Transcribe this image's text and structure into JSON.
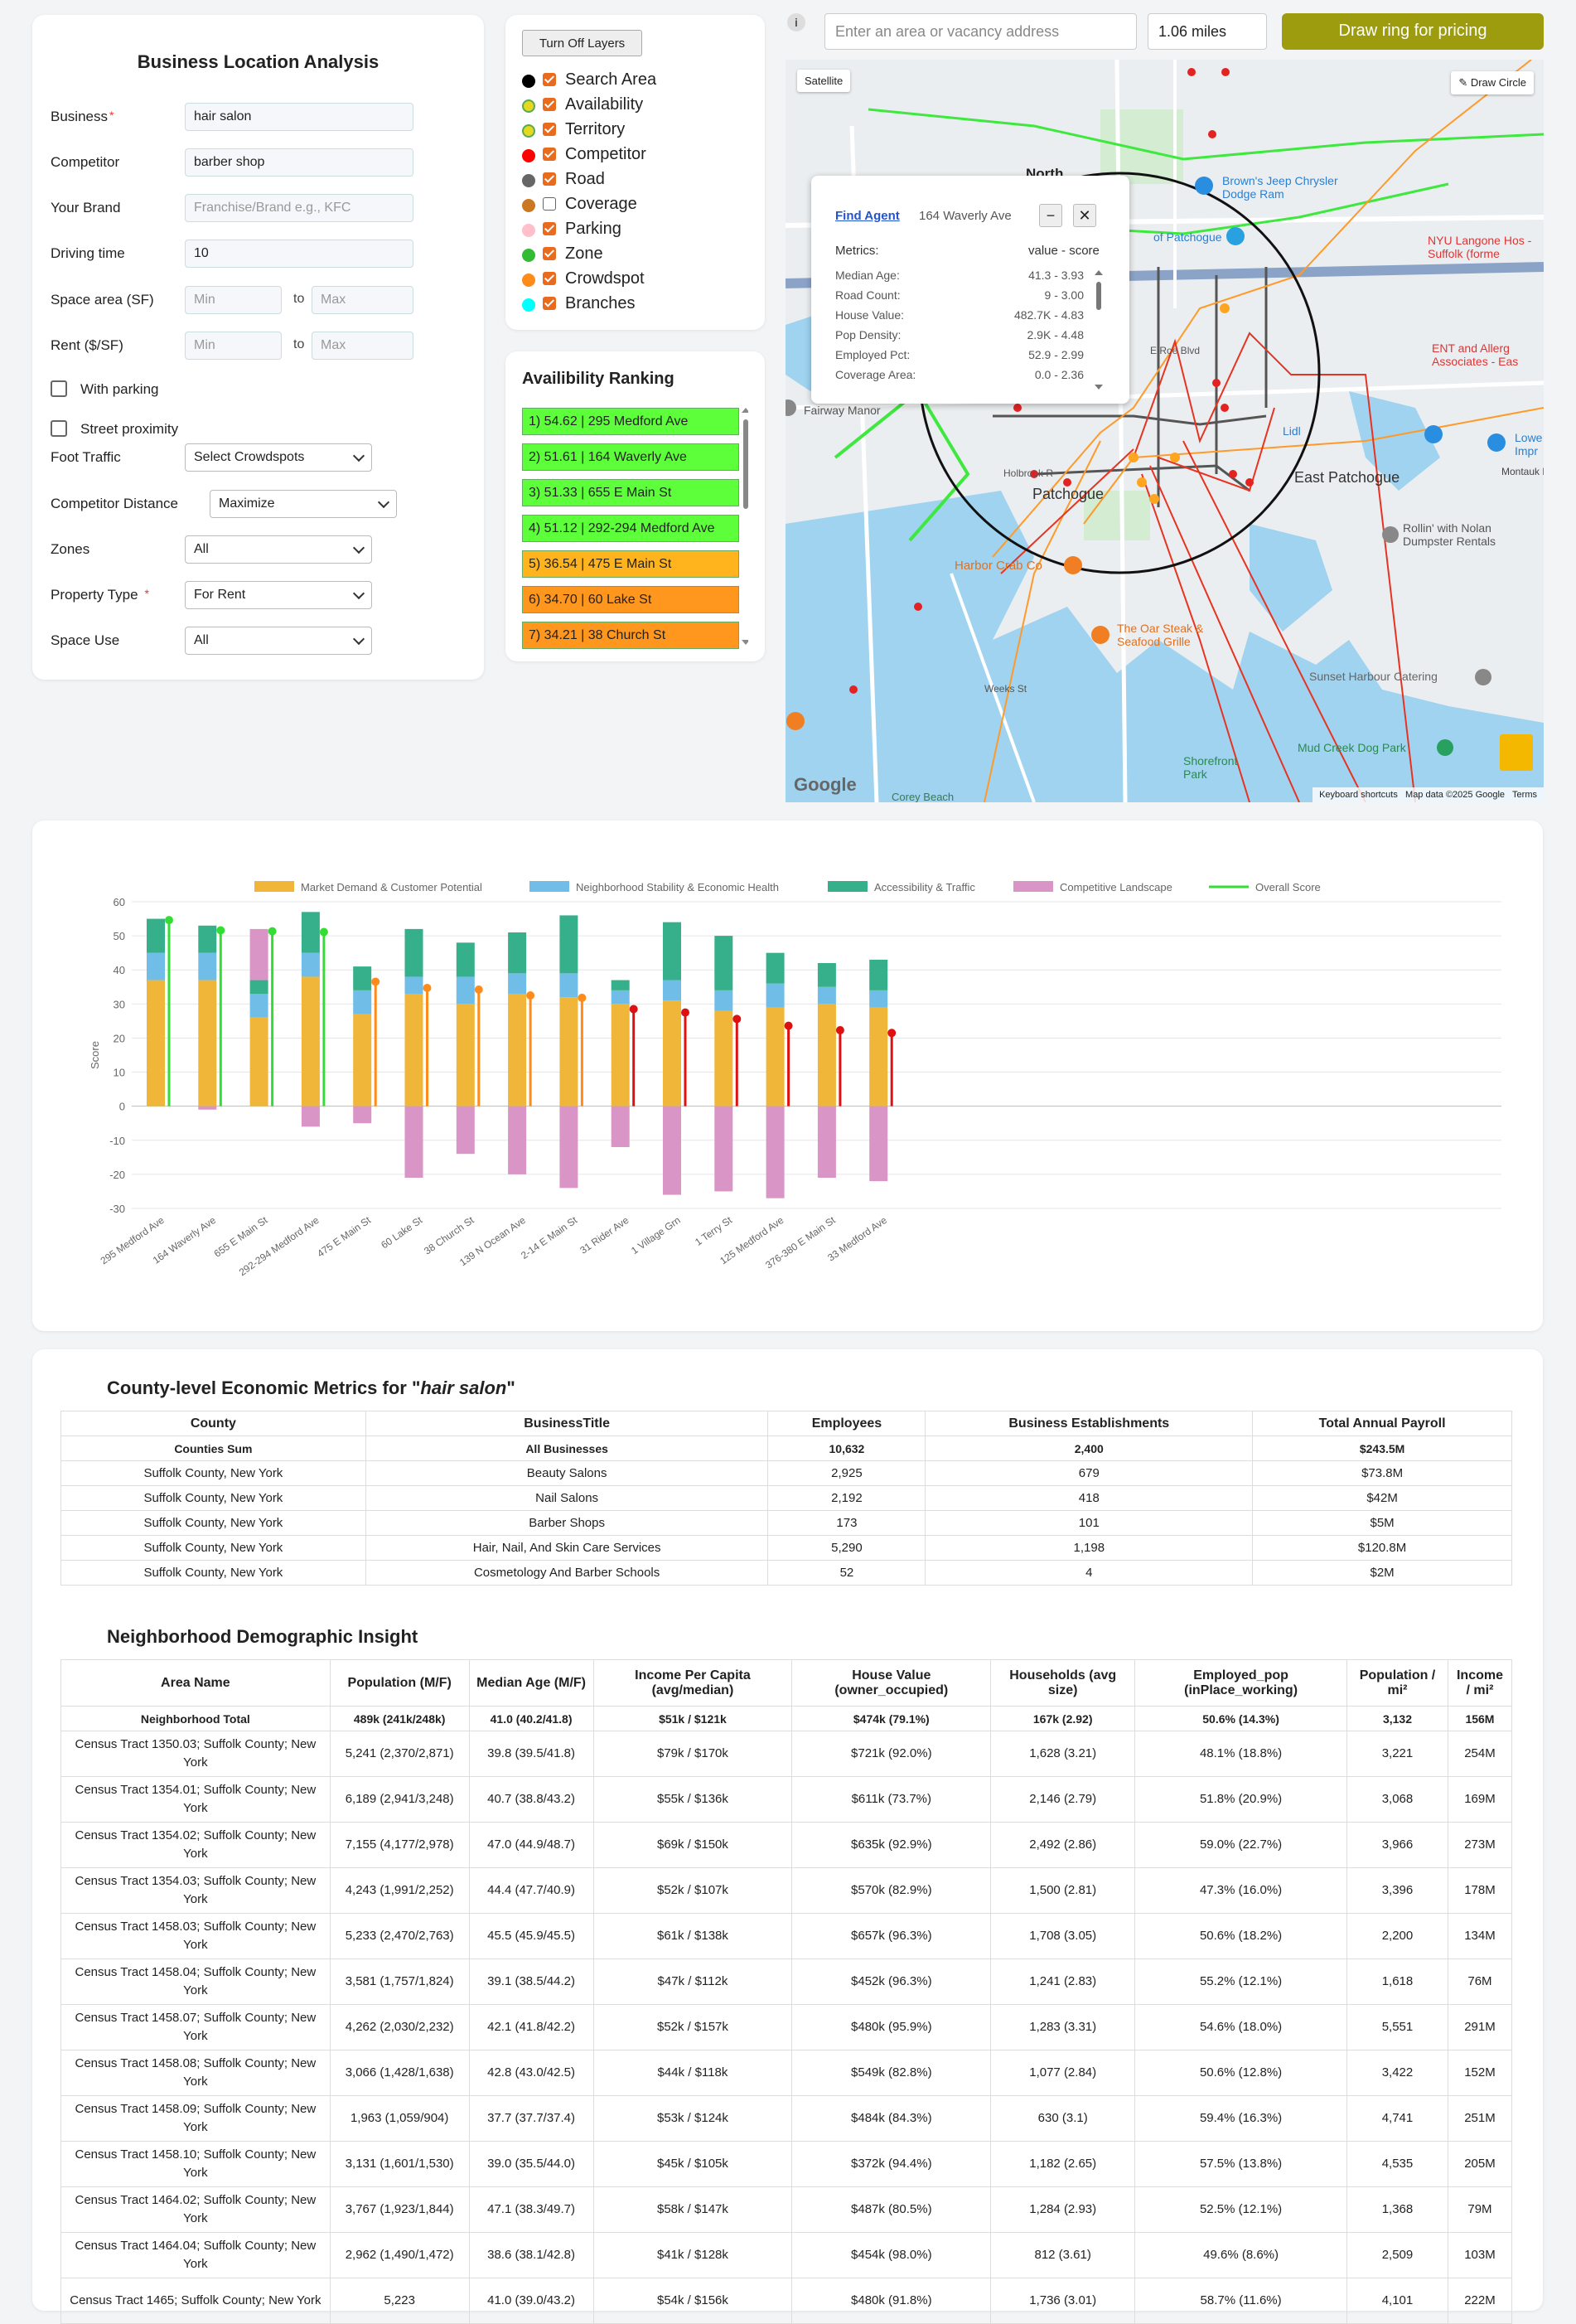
{
  "form": {
    "title": "Business Location Analysis",
    "fields": [
      {
        "label": "Business",
        "required": true,
        "value": "hair salon"
      },
      {
        "label": "Competitor",
        "required": false,
        "value": "barber shop"
      },
      {
        "label": "Your Brand",
        "required": false,
        "value": "",
        "placeholder": "Franchise/Brand e.g., KFC"
      },
      {
        "label": "Driving time",
        "required": false,
        "value": "10"
      }
    ],
    "space_area": {
      "label": "Space area (SF)",
      "min_placeholder": "Min",
      "to": "to",
      "max_placeholder": "Max"
    },
    "rent": {
      "label": "Rent ($/SF)",
      "min_placeholder": "Min",
      "to": "to",
      "max_placeholder": "Max"
    },
    "with_parking": "With parking",
    "street_proximity": "Street proximity",
    "selects": [
      {
        "label": "Foot Traffic",
        "required": false,
        "value": "Select Crowdspots"
      },
      {
        "label": "Competitor Distance",
        "required": false,
        "value": "Maximize"
      },
      {
        "label": "Zones",
        "required": false,
        "value": "All"
      },
      {
        "label": "Property Type",
        "required": true,
        "value": "For Rent"
      },
      {
        "label": "Space Use",
        "required": false,
        "value": "All"
      }
    ]
  },
  "layers": {
    "button": "Turn Off Layers",
    "items": [
      {
        "name": "Search Area",
        "color": "#000000",
        "checked": true
      },
      {
        "name": "Availability",
        "color": "#e6d820",
        "checked": true
      },
      {
        "name": "Territory",
        "color": "#e6d820",
        "checked": true
      },
      {
        "name": "Competitor",
        "color": "#ff0000",
        "checked": true
      },
      {
        "name": "Road",
        "color": "#666666",
        "checked": true
      },
      {
        "name": "Coverage",
        "color": "#cc7722",
        "checked": false
      },
      {
        "name": "Parking",
        "color": "#ffc0cb",
        "checked": true
      },
      {
        "name": "Zone",
        "color": "#33bb33",
        "checked": true
      },
      {
        "name": "Crowdspot",
        "color": "#ff8c1a",
        "checked": true
      },
      {
        "name": "Branches",
        "color": "#00ffff",
        "checked": true
      }
    ]
  },
  "ranking": {
    "title": "Availibility Ranking",
    "items": [
      {
        "label": "1) 54.62 | 295 Medford Ave",
        "color": "#5cff3a"
      },
      {
        "label": "2) 51.61 | 164 Waverly Ave",
        "color": "#5cff3a"
      },
      {
        "label": "3) 51.33 | 655 E Main St",
        "color": "#5cff3a"
      },
      {
        "label": "4) 51.12 | 292-294 Medford Ave",
        "color": "#5cff3a"
      },
      {
        "label": "5) 36.54 | 475 E Main St",
        "color": "#ffb41e"
      },
      {
        "label": "6) 34.70 | 60 Lake St",
        "color": "#ff961e"
      },
      {
        "label": "7) 34.21 | 38 Church St",
        "color": "#ff961e"
      }
    ]
  },
  "map": {
    "info": "i",
    "vacancy_placeholder": "Enter an area or vacancy address",
    "radius": "1.06 miles",
    "draw_ring": "Draw ring for pricing",
    "satellite": "Satellite",
    "draw_circle": "Draw Circle",
    "popup": {
      "link": "Find Agent",
      "address": "164 Waverly Ave",
      "metrics_label": "Metrics:",
      "metrics_header": "value - score",
      "rows": [
        {
          "name": "Median Age:",
          "value": "41.3 - 3.93"
        },
        {
          "name": "Road Count:",
          "value": "9 - 3.00"
        },
        {
          "name": "House Value:",
          "value": "482.7K - 4.83"
        },
        {
          "name": "Pop Density:",
          "value": "2.9K - 4.48"
        },
        {
          "name": "Employed Pct:",
          "value": "52.9 - 2.99"
        },
        {
          "name": "Coverage Area:",
          "value": "0.0 - 2.36"
        }
      ]
    },
    "labels": {
      "patchogue": "Patchogue",
      "east_patchogue": "East Patchogue",
      "north": "North",
      "browns": "Brown's Jeep Chrysler Dodge Ram",
      "of_patchogue": "of Patchogue",
      "nyu": "NYU Langone Hos - Suffolk (forme",
      "ent": "ENT and Allerg Associates - Eas",
      "lidl": "Lidl",
      "lowe": "Lowe Impr",
      "montauk": "Montauk H",
      "rollin": "Rollin' with Nolan Dumpster Rentals",
      "fairway": "Fairway Manor",
      "harbor_crab": "Harbor Crab Co",
      "oar_steak": "The Oar Steak & Seafood Grille",
      "sunset": "Sunset Harbour Catering",
      "mud_creek": "Mud Creek Dog Park",
      "shorefront": "Shorefront Park",
      "corey": "Corey Beach",
      "weeks": "Weeks St",
      "holbrook": "Holbrook R",
      "e_roe": "E Roe Blvd",
      "google": "Google",
      "keyboard": "Keyboard shortcuts",
      "mapdata": "Map data ©2025 Google",
      "terms": "Terms"
    }
  },
  "chart_data": {
    "type": "bar",
    "stacked": true,
    "ylabel": "Score",
    "ylim": [
      -30,
      60
    ],
    "yticks": [
      60,
      50,
      40,
      30,
      20,
      10,
      0,
      -10,
      -20,
      -30
    ],
    "legend_position": "top",
    "categories": [
      "295 Medford Ave",
      "164 Waverly Ave",
      "655 E Main St",
      "292-294 Medford Ave",
      "475 E Main St",
      "60 Lake St",
      "38 Church St",
      "139 N Ocean Ave",
      "2-14 E Main St",
      "31 Rider Ave",
      "1 Village Grn",
      "1 Terry St",
      "125 Medford Ave",
      "376-380 E Main St",
      "33 Medford Ave"
    ],
    "series": [
      {
        "name": "Market Demand & Customer Potential",
        "color": "#efb63a",
        "values": [
          37,
          37,
          26,
          38,
          27,
          33,
          30,
          33,
          32,
          30,
          31,
          28,
          29,
          30,
          29
        ]
      },
      {
        "name": "Neighborhood Stability & Economic Health",
        "color": "#70bde8",
        "values": [
          8,
          8,
          7,
          7,
          7,
          5,
          8,
          6,
          7,
          4,
          6,
          6,
          7,
          5,
          5
        ]
      },
      {
        "name": "Accessibility & Traffic",
        "color": "#35b08a",
        "values": [
          10,
          8,
          4,
          12,
          7,
          14,
          10,
          12,
          17,
          3,
          17,
          16,
          9,
          7,
          9
        ]
      },
      {
        "name": "Competitive Landscape",
        "color": "#d895c6",
        "values": [
          0,
          -1,
          15,
          -6,
          -5,
          -21,
          -14,
          -20,
          -24,
          -12,
          -26,
          -25,
          -27,
          -21,
          -22
        ]
      }
    ],
    "overall": {
      "name": "Overall Score",
      "color": "#33dd33",
      "values": [
        54.62,
        51.61,
        51.33,
        51.12,
        36.54,
        34.7,
        34.21,
        32.5,
        31.8,
        28.5,
        27.5,
        25.6,
        23.6,
        22.3,
        21.5
      ]
    }
  },
  "county": {
    "title_prefix": "County-level Economic Metrics for \"",
    "title_term": "hair salon",
    "title_suffix": "\"",
    "headers": [
      "County",
      "BusinessTitle",
      "Employees",
      "Business Establishments",
      "Total Annual Payroll"
    ],
    "sum": [
      "Counties Sum",
      "All Businesses",
      "10,632",
      "2,400",
      "$243.5M"
    ],
    "rows": [
      [
        "Suffolk County, New York",
        "Beauty Salons",
        "2,925",
        "679",
        "$73.8M"
      ],
      [
        "Suffolk County, New York",
        "Nail Salons",
        "2,192",
        "418",
        "$42M"
      ],
      [
        "Suffolk County, New York",
        "Barber Shops",
        "173",
        "101",
        "$5M"
      ],
      [
        "Suffolk County, New York",
        "Hair, Nail, And Skin Care Services",
        "5,290",
        "1,198",
        "$120.8M"
      ],
      [
        "Suffolk County, New York",
        "Cosmetology And Barber Schools",
        "52",
        "4",
        "$2M"
      ]
    ]
  },
  "demographics": {
    "title": "Neighborhood Demographic Insight",
    "headers": [
      "Area Name",
      "Population (M/F)",
      "Median Age (M/F)",
      "Income Per Capita (avg/median)",
      "House Value (owner_occupied)",
      "Households (avg size)",
      "Employed_pop (inPlace_working)",
      "Population / mi²",
      "Income / mi²"
    ],
    "sum": [
      "Neighborhood Total",
      "489k (241k/248k)",
      "41.0 (40.2/41.8)",
      "$51k / $121k",
      "$474k (79.1%)",
      "167k (2.92)",
      "50.6% (14.3%)",
      "3,132",
      "156M"
    ],
    "rows": [
      [
        "Census Tract 1350.03; Suffolk County; New York",
        "5,241 (2,370/2,871)",
        "39.8 (39.5/41.8)",
        "$79k / $170k",
        "$721k (92.0%)",
        "1,628 (3.21)",
        "48.1% (18.8%)",
        "3,221",
        "254M"
      ],
      [
        "Census Tract 1354.01; Suffolk County; New York",
        "6,189 (2,941/3,248)",
        "40.7 (38.8/43.2)",
        "$55k / $136k",
        "$611k (73.7%)",
        "2,146 (2.79)",
        "51.8% (20.9%)",
        "3,068",
        "169M"
      ],
      [
        "Census Tract 1354.02; Suffolk County; New York",
        "7,155 (4,177/2,978)",
        "47.0 (44.9/48.7)",
        "$69k / $150k",
        "$635k (92.9%)",
        "2,492 (2.86)",
        "59.0% (22.7%)",
        "3,966",
        "273M"
      ],
      [
        "Census Tract 1354.03; Suffolk County; New York",
        "4,243 (1,991/2,252)",
        "44.4 (47.7/40.9)",
        "$52k / $107k",
        "$570k (82.9%)",
        "1,500 (2.81)",
        "47.3% (16.0%)",
        "3,396",
        "178M"
      ],
      [
        "Census Tract 1458.03; Suffolk County; New York",
        "5,233 (2,470/2,763)",
        "45.5 (45.9/45.5)",
        "$61k / $138k",
        "$657k (96.3%)",
        "1,708 (3.05)",
        "50.6% (18.2%)",
        "2,200",
        "134M"
      ],
      [
        "Census Tract 1458.04; Suffolk County; New York",
        "3,581 (1,757/1,824)",
        "39.1 (38.5/44.2)",
        "$47k / $112k",
        "$452k (96.3%)",
        "1,241 (2.83)",
        "55.2% (12.1%)",
        "1,618",
        "76M"
      ],
      [
        "Census Tract 1458.07; Suffolk County; New York",
        "4,262 (2,030/2,232)",
        "42.1 (41.8/42.2)",
        "$52k / $157k",
        "$480k (95.9%)",
        "1,283 (3.31)",
        "54.6% (18.0%)",
        "5,551",
        "291M"
      ],
      [
        "Census Tract 1458.08; Suffolk County; New York",
        "3,066 (1,428/1,638)",
        "42.8 (43.0/42.5)",
        "$44k / $118k",
        "$549k (82.8%)",
        "1,077 (2.84)",
        "50.6% (12.8%)",
        "3,422",
        "152M"
      ],
      [
        "Census Tract 1458.09; Suffolk County; New York",
        "1,963 (1,059/904)",
        "37.7 (37.7/37.4)",
        "$53k / $124k",
        "$484k (84.3%)",
        "630 (3.1)",
        "59.4% (16.3%)",
        "4,741",
        "251M"
      ],
      [
        "Census Tract 1458.10; Suffolk County; New York",
        "3,131 (1,601/1,530)",
        "39.0 (35.5/44.0)",
        "$45k / $105k",
        "$372k (94.4%)",
        "1,182 (2.65)",
        "57.5% (13.8%)",
        "4,535",
        "205M"
      ],
      [
        "Census Tract 1464.02; Suffolk County; New York",
        "3,767 (1,923/1,844)",
        "47.1 (38.3/49.7)",
        "$58k / $147k",
        "$487k (80.5%)",
        "1,284 (2.93)",
        "52.5% (12.1%)",
        "1,368",
        "79M"
      ],
      [
        "Census Tract 1464.04; Suffolk County; New York",
        "2,962 (1,490/1,472)",
        "38.6 (38.1/42.8)",
        "$41k / $128k",
        "$454k (98.0%)",
        "812 (3.61)",
        "49.6% (8.6%)",
        "2,509",
        "103M"
      ],
      [
        "Census Tract 1465; Suffolk County; New York",
        "5,223",
        "41.0 (39.0/43.2)",
        "$54k / $156k",
        "$480k (91.8%)",
        "1,736 (3.01)",
        "58.7% (11.6%)",
        "4,101",
        "222M"
      ]
    ]
  }
}
